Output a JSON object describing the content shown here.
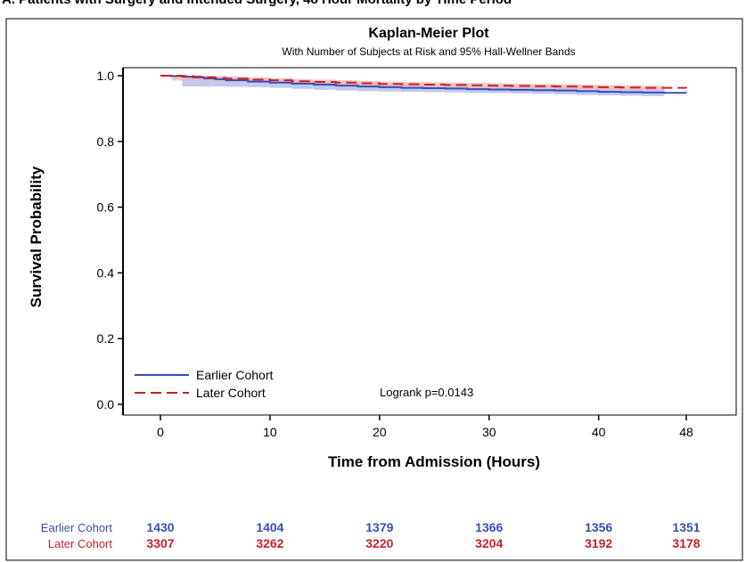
{
  "panel_title": "A. Patients with Surgery and Intended Surgery, 48 Hour Mortality by Time Period",
  "colors": {
    "earlier": "#3a4db8",
    "earlier_band": "#a9b8e8",
    "later": "#c8202a",
    "later_band": "#f2b6b0"
  },
  "chart_data": {
    "type": "line",
    "title": "Kaplan-Meier Plot",
    "subtitle": "With Number of Subjects at Risk and 95% Hall-Wellner Bands",
    "xlabel": "Time from Admission (Hours)",
    "ylabel": "Survival Probability",
    "xlim": [
      0,
      48
    ],
    "ylim": [
      0,
      1
    ],
    "x_ticks": [
      0,
      10,
      20,
      30,
      40,
      48
    ],
    "y_ticks": [
      "0.0",
      "0.2",
      "0.4",
      "0.6",
      "0.8",
      "1.0"
    ],
    "grid": false,
    "legend_position": "bottom-left",
    "series": [
      {
        "name": "Earlier Cohort",
        "line_style": "solid",
        "x": [
          0,
          1,
          2,
          3,
          4,
          5,
          6,
          8,
          10,
          12,
          14,
          16,
          18,
          20,
          22,
          24,
          26,
          28,
          30,
          32,
          34,
          36,
          38,
          40,
          42,
          44,
          46,
          48
        ],
        "y": [
          1.0,
          0.999,
          0.997,
          0.995,
          0.992,
          0.989,
          0.986,
          0.982,
          0.979,
          0.976,
          0.973,
          0.97,
          0.967,
          0.965,
          0.963,
          0.962,
          0.961,
          0.959,
          0.958,
          0.957,
          0.956,
          0.955,
          0.953,
          0.951,
          0.95,
          0.949,
          0.948,
          0.947
        ],
        "band_lower": [
          null,
          null,
          0.967,
          0.967,
          0.967,
          0.967,
          0.967,
          0.966,
          0.965,
          0.963,
          0.96,
          0.957,
          0.955,
          0.953,
          0.952,
          0.951,
          0.95,
          0.949,
          0.948,
          0.947,
          0.946,
          0.945,
          0.943,
          0.941,
          0.94,
          0.939,
          0.938,
          null
        ],
        "band_upper": [
          null,
          null,
          1.0,
          1.0,
          0.999,
          0.997,
          0.995,
          0.991,
          0.988,
          0.985,
          0.982,
          0.979,
          0.977,
          0.975,
          0.973,
          0.972,
          0.971,
          0.969,
          0.968,
          0.967,
          0.966,
          0.965,
          0.963,
          0.961,
          0.96,
          0.959,
          0.958,
          null
        ]
      },
      {
        "name": "Later Cohort",
        "line_style": "dashed",
        "x": [
          0,
          1,
          2,
          3,
          4,
          5,
          6,
          8,
          10,
          12,
          14,
          16,
          18,
          20,
          22,
          24,
          26,
          28,
          30,
          32,
          34,
          36,
          38,
          40,
          42,
          44,
          46,
          48
        ],
        "y": [
          1.0,
          1.0,
          0.999,
          0.997,
          0.995,
          0.993,
          0.991,
          0.988,
          0.986,
          0.983,
          0.981,
          0.979,
          0.977,
          0.975,
          0.974,
          0.973,
          0.972,
          0.971,
          0.97,
          0.969,
          0.968,
          0.967,
          0.966,
          0.965,
          0.964,
          0.963,
          0.963,
          0.962
        ],
        "band_lower": [
          null,
          0.985,
          0.985,
          0.985,
          0.985,
          0.984,
          0.983,
          0.981,
          0.979,
          0.977,
          0.975,
          0.973,
          0.971,
          0.969,
          0.968,
          0.967,
          0.966,
          0.965,
          0.964,
          0.963,
          0.962,
          0.961,
          0.96,
          0.959,
          0.958,
          0.957,
          0.957,
          null
        ],
        "band_upper": [
          null,
          1.0,
          1.0,
          1.0,
          1.0,
          0.999,
          0.998,
          0.995,
          0.993,
          0.99,
          0.988,
          0.986,
          0.984,
          0.982,
          0.981,
          0.98,
          0.979,
          0.978,
          0.977,
          0.976,
          0.975,
          0.974,
          0.973,
          0.972,
          0.971,
          0.97,
          0.97,
          null
        ]
      }
    ],
    "annotation": "Logrank p=0.0143",
    "at_risk": {
      "times": [
        0,
        10,
        20,
        30,
        40,
        48
      ],
      "rows": [
        {
          "label": "Earlier Cohort",
          "values": [
            "1430",
            "1404",
            "1379",
            "1366",
            "1356",
            "1351"
          ]
        },
        {
          "label": "Later Cohort",
          "values": [
            "3307",
            "3262",
            "3220",
            "3204",
            "3192",
            "3178"
          ]
        }
      ]
    }
  }
}
